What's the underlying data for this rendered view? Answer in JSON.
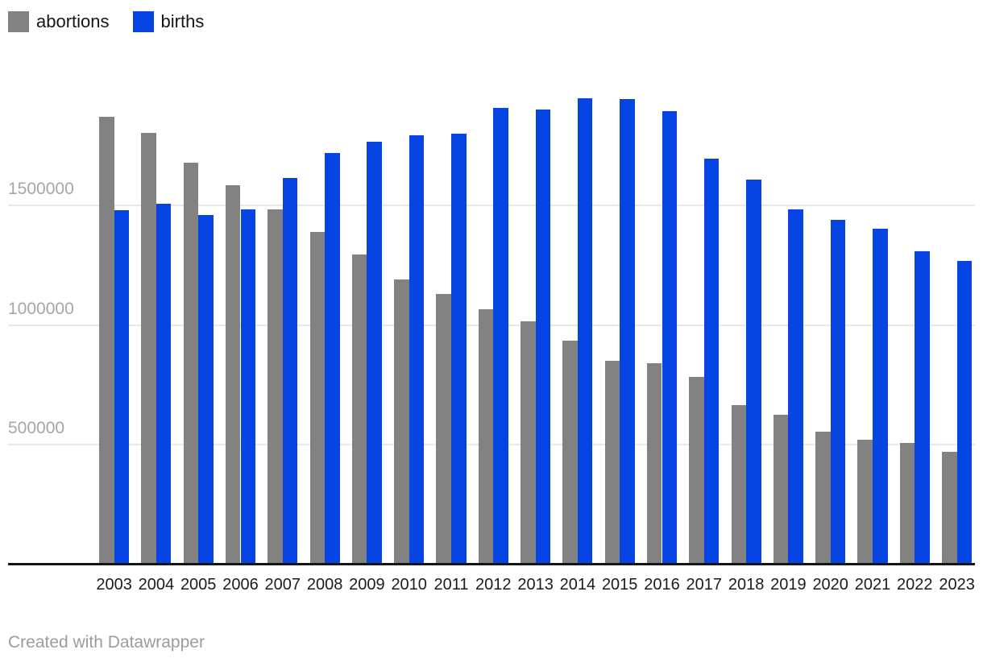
{
  "legend": {
    "items": [
      {
        "label": "abortions",
        "color": "#828282"
      },
      {
        "label": "births",
        "color": "#0644e3"
      }
    ]
  },
  "footer": {
    "credit_text": "Created with Datawrapper"
  },
  "colors": {
    "abortions_bar": "#828282",
    "births_bar": "#0644e3",
    "gridline": "#e8e8e8",
    "axis_line": "#141414",
    "ytick_text": "#a6a6a6",
    "xtick_text": "#1c1c1c",
    "footer_text": "#9c9c9c"
  },
  "chart_data": {
    "type": "bar",
    "title": "",
    "xlabel": "",
    "ylabel": "",
    "categories": [
      "2003",
      "2004",
      "2005",
      "2006",
      "2007",
      "2008",
      "2009",
      "2010",
      "2011",
      "2012",
      "2013",
      "2014",
      "2015",
      "2016",
      "2017",
      "2018",
      "2019",
      "2020",
      "2021",
      "2022",
      "2023"
    ],
    "series": [
      {
        "name": "abortions",
        "color": "#828282",
        "values": [
          1865000,
          1798000,
          1676000,
          1582000,
          1479000,
          1386000,
          1292000,
          1186000,
          1125000,
          1064000,
          1012000,
          930000,
          848000,
          837000,
          779000,
          661000,
          622000,
          553000,
          518000,
          504000,
          467000
        ]
      },
      {
        "name": "births",
        "color": "#0644e3",
        "values": [
          1477000,
          1502000,
          1457000,
          1480000,
          1610000,
          1714000,
          1762000,
          1789000,
          1797000,
          1902000,
          1896000,
          1943000,
          1941000,
          1889000,
          1690000,
          1604000,
          1481000,
          1437000,
          1398000,
          1304000,
          1264000
        ]
      }
    ],
    "ylim": [
      0,
      2000000
    ],
    "yticks": [
      500000,
      1000000,
      1500000
    ],
    "grid": "horizontal",
    "legend_position": "top-left",
    "attribution": "Created with Datawrapper"
  }
}
